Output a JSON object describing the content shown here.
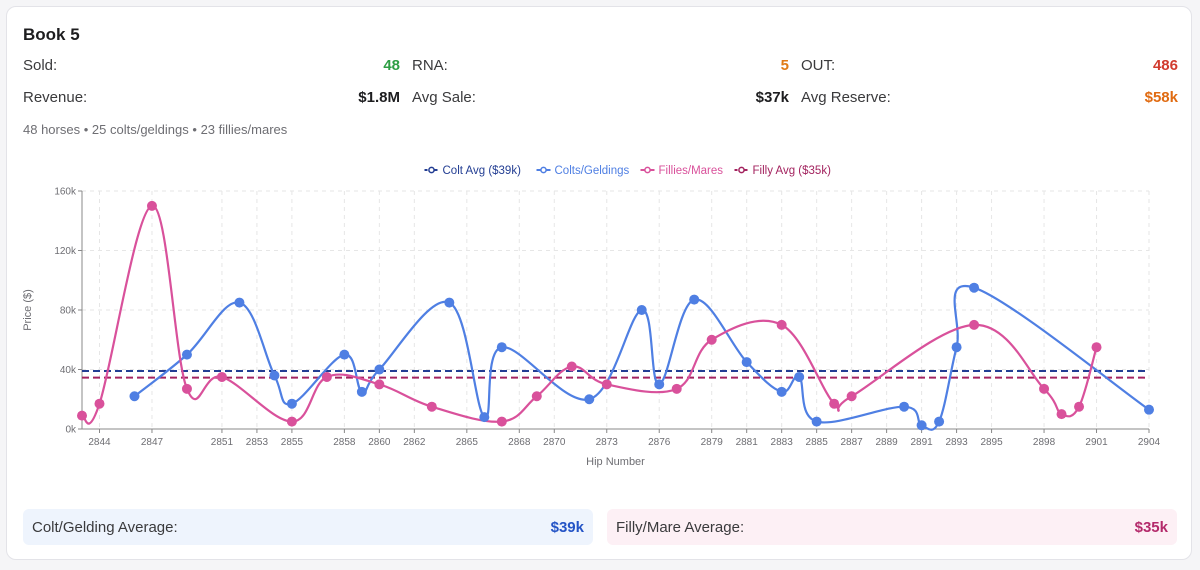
{
  "header": {
    "title": "Book 5"
  },
  "stats": {
    "sold": {
      "label": "Sold:",
      "value": "48"
    },
    "rna": {
      "label": "RNA:",
      "value": "5"
    },
    "out": {
      "label": "OUT:",
      "value": "486"
    },
    "revenue": {
      "label": "Revenue:",
      "value": "$1.8M"
    },
    "avg_sale": {
      "label": "Avg Sale:",
      "value": "$37k"
    },
    "avg_reserve": {
      "label": "Avg Reserve:",
      "value": "$58k"
    }
  },
  "colors": {
    "sold": "#2e9e44",
    "rna": "#e07b16",
    "out": "#d13b2e",
    "reserve": "#e06a10",
    "colt": "#4f7fe3",
    "colt_avg": "#233e93",
    "filly": "#d9519b",
    "filly_avg": "#a3235f",
    "colt_box_bg": "#eef4fd",
    "colt_box_val": "#2454c6",
    "filly_box_bg": "#fdf0f5",
    "filly_box_val": "#b42a6b"
  },
  "summary": {
    "horses": "48 horses",
    "colts": "25 colts/geldings",
    "fillies": "23 fillies/mares",
    "separator": "•"
  },
  "chart_data": {
    "type": "line",
    "xlabel": "Hip Number",
    "ylabel": "Price ($)",
    "xlim": [
      2843,
      2904
    ],
    "ylim": [
      0,
      160000
    ],
    "x_ticks": [
      2844,
      2847,
      2851,
      2853,
      2855,
      2858,
      2860,
      2862,
      2865,
      2868,
      2870,
      2873,
      2876,
      2879,
      2881,
      2883,
      2885,
      2887,
      2889,
      2891,
      2893,
      2895,
      2898,
      2901,
      2904
    ],
    "y_ticks": [
      0,
      40000,
      80000,
      120000,
      160000
    ],
    "y_tick_labels": [
      "0k",
      "40k",
      "80k",
      "120k",
      "160k"
    ],
    "grid": true,
    "legend_position": "top-center",
    "legend": [
      "Colt Avg ($39k)",
      "Colts/Geldings",
      "Fillies/Mares",
      "Filly Avg ($35k)"
    ],
    "series": [
      {
        "name": "Colts/Geldings",
        "x": [
          2846,
          2849,
          2852,
          2854,
          2855,
          2858,
          2859,
          2860,
          2864,
          2866,
          2867,
          2872,
          2875,
          2876,
          2878,
          2881,
          2883,
          2884,
          2885,
          2890,
          2891,
          2892,
          2893,
          2894,
          2904
        ],
        "y": [
          22000,
          50000,
          85000,
          36000,
          17000,
          50000,
          25000,
          40000,
          85000,
          8000,
          55000,
          20000,
          80000,
          30000,
          87000,
          45000,
          25000,
          35000,
          5000,
          15000,
          2500,
          5000,
          55000,
          95000,
          13000
        ]
      },
      {
        "name": "Fillies/Mares",
        "x": [
          2843,
          2844,
          2847,
          2849,
          2851,
          2855,
          2857,
          2860,
          2863,
          2867,
          2869,
          2871,
          2873,
          2877,
          2879,
          2883,
          2886,
          2887,
          2894,
          2898,
          2899,
          2900,
          2901
        ],
        "y": [
          9000,
          17000,
          150000,
          27000,
          35000,
          5000,
          35000,
          30000,
          15000,
          5000,
          22000,
          42000,
          30000,
          27000,
          60000,
          70000,
          17000,
          22000,
          70000,
          27000,
          10000,
          15000,
          55000
        ]
      }
    ],
    "reference_lines": [
      {
        "name": "Colt Avg ($39k)",
        "y": 39000
      },
      {
        "name": "Filly Avg ($35k)",
        "y": 34500
      }
    ]
  },
  "averages": {
    "colt": {
      "label": "Colt/Gelding Average:",
      "value": "$39k"
    },
    "filly": {
      "label": "Filly/Mare Average:",
      "value": "$35k"
    }
  }
}
